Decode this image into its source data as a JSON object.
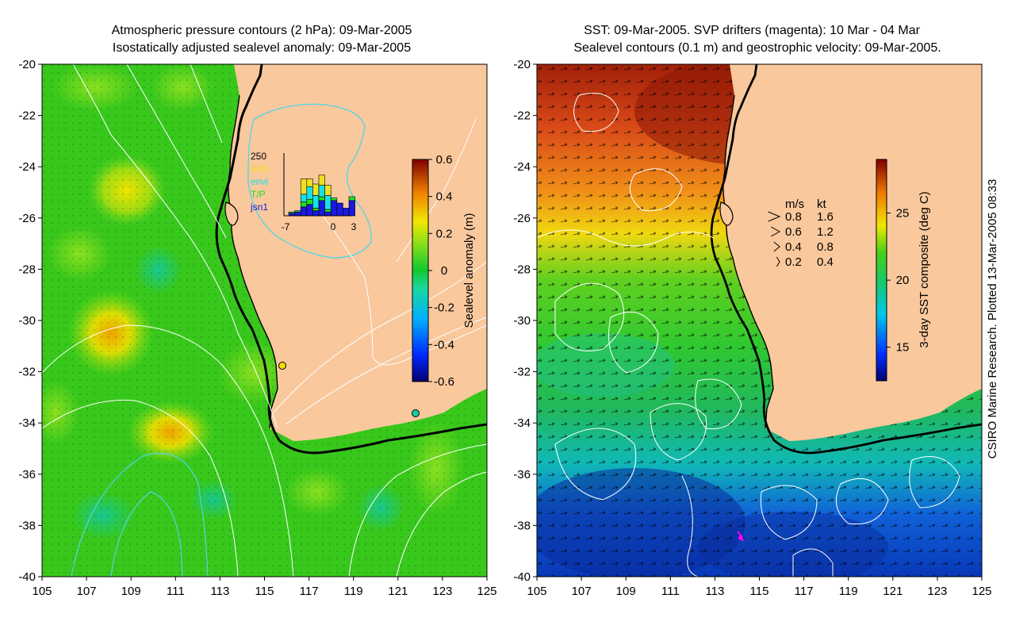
{
  "colors": {
    "land": "#f9c89c",
    "ocean_green": "#35c818",
    "ocean_light": "#6fdc25",
    "coast": "#000000",
    "contour": "#ffffff",
    "contour_cyan": "#4ed6e8",
    "drifter": "#ff00ff"
  },
  "chart_data": [
    {
      "type": "heatmap",
      "panel": "left",
      "title_line1": "Atmospheric pressure contours (2 hPa): 09-Mar-2005",
      "title_line2": "Isostatically adjusted sealevel anomaly: 09-Mar-2005",
      "xlim": [
        105,
        125
      ],
      "ylim": [
        -40,
        -20
      ],
      "xticks": [
        "105",
        "107",
        "109",
        "111",
        "113",
        "115",
        "117",
        "119",
        "121",
        "123",
        "125"
      ],
      "yticks": [
        "-20",
        "-22",
        "-24",
        "-26",
        "-28",
        "-30",
        "-32",
        "-34",
        "-36",
        "-38",
        "-40"
      ],
      "colorbar": {
        "label": "Sealevel anomaly (m)",
        "range": [
          -0.6,
          0.6
        ],
        "ticks": [
          "0.6",
          "0.4",
          "0.2",
          "0",
          "-0.2",
          "-0.4",
          "-0.6"
        ]
      },
      "inset_histogram": {
        "ymax_label": "250",
        "legend": [
          {
            "name": "ERS",
            "color": "#f0e020"
          },
          {
            "name": "envi",
            "color": "#18e0e8"
          },
          {
            "name": "T/P",
            "color": "#20e020"
          },
          {
            "name": "jsn1",
            "color": "#1818e0"
          }
        ],
        "xticks": [
          "-7",
          "0",
          "3"
        ],
        "bins": [
          {
            "day": -7,
            "ers": 0,
            "envi": 0,
            "tp": 5,
            "jsn1": 10
          },
          {
            "day": -6,
            "ers": 0,
            "envi": 0,
            "tp": 5,
            "jsn1": 15
          },
          {
            "day": -5,
            "ers": 60,
            "envi": 30,
            "tp": 20,
            "jsn1": 35
          },
          {
            "day": -4,
            "ers": 30,
            "envi": 50,
            "tp": 20,
            "jsn1": 45
          },
          {
            "day": -3,
            "ers": 45,
            "envi": 50,
            "tp": 10,
            "jsn1": 20
          },
          {
            "day": -2,
            "ers": 40,
            "envi": 45,
            "tp": 15,
            "jsn1": 60
          },
          {
            "day": -1,
            "ers": 40,
            "envi": 55,
            "tp": 10,
            "jsn1": 15
          },
          {
            "day": 0,
            "ers": 0,
            "envi": 0,
            "tp": 10,
            "jsn1": 60
          },
          {
            "day": 1,
            "ers": 0,
            "envi": 0,
            "tp": 0,
            "jsn1": 50
          },
          {
            "day": 2,
            "ers": 0,
            "envi": 0,
            "tp": 0,
            "jsn1": 30
          },
          {
            "day": 3,
            "ers": 0,
            "envi": 0,
            "tp": 15,
            "jsn1": 60
          }
        ]
      }
    },
    {
      "type": "heatmap",
      "panel": "right",
      "title_line1": "SST: 09-Mar-2005. SVP drifters (magenta): 10 Mar - 04 Mar",
      "title_line2": "Sealevel contours (0.1 m) and geostrophic velocity: 09-Mar-2005.",
      "xlim": [
        105,
        125
      ],
      "ylim": [
        -40,
        -20
      ],
      "xticks": [
        "105",
        "107",
        "109",
        "111",
        "113",
        "115",
        "117",
        "119",
        "121",
        "123",
        "125"
      ],
      "yticks": [
        "-20",
        "-22",
        "-24",
        "-26",
        "-28",
        "-30",
        "-32",
        "-34",
        "-36",
        "-38",
        "-40"
      ],
      "colorbar": {
        "label": "3-day SST composite (deg C)",
        "range": [
          12.5,
          29
        ],
        "ticks": [
          "25",
          "20",
          "15"
        ]
      },
      "velocity_key": {
        "header_ms": "m/s",
        "header_kt": "kt",
        "rows": [
          {
            "ms": "0.8",
            "kt": "1.6"
          },
          {
            "ms": "0.6",
            "kt": "1.2"
          },
          {
            "ms": "0.4",
            "kt": "0.8"
          },
          {
            "ms": "0.2",
            "kt": "0.4"
          }
        ]
      }
    }
  ],
  "credit": "CSIRO Marine Research. Plotted 13-Mar-2005 08:33"
}
